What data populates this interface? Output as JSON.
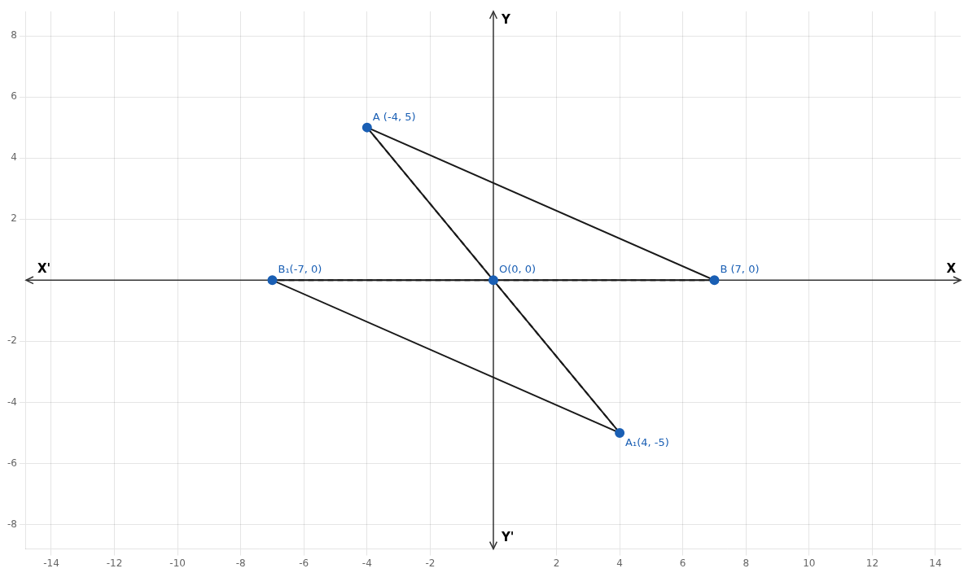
{
  "chart_data": {
    "type": "scatter",
    "xlim": [
      -14.8,
      14.8
    ],
    "ylim": [
      -8.8,
      8.8
    ],
    "xticks": [
      -14,
      -12,
      -10,
      -8,
      -6,
      -4,
      -2,
      2,
      4,
      6,
      8,
      10,
      12,
      14
    ],
    "yticks": [
      -8,
      -6,
      -4,
      -2,
      2,
      4,
      6,
      8
    ],
    "grid": true,
    "axis_labels": {
      "x": [
        "X'",
        "X"
      ],
      "y": [
        "Y'",
        "Y"
      ]
    },
    "series": [
      {
        "x": [
          0,
          -4,
          7,
          0
        ],
        "values": [
          0,
          5,
          0,
          0
        ],
        "color": "#1a1a1a",
        "line_style": "solid",
        "marker": "none"
      },
      {
        "x": [
          0,
          4,
          -7,
          0
        ],
        "values": [
          0,
          -5,
          0,
          0
        ],
        "color": "#1a1a1a",
        "line_style": "solid",
        "marker": "none"
      },
      {
        "x": [
          -4,
          4
        ],
        "values": [
          5,
          -5
        ],
        "color": "#1a1a1a",
        "line_style": "dashed",
        "marker": "none"
      },
      {
        "x": [
          7,
          -7
        ],
        "values": [
          0,
          0
        ],
        "color": "#1a1a1a",
        "line_style": "dashed",
        "marker": "none"
      },
      {
        "x": [
          -4,
          7,
          4,
          -7,
          0
        ],
        "values": [
          5,
          0,
          -5,
          0,
          0
        ],
        "color": "#1a5fb4",
        "line_style": "none",
        "marker": "circle",
        "data_labels": true,
        "value_labels": [
          "A (-4, 5)",
          "B (7, 0)",
          "A₁(4, -5)",
          "B₁(-7, 0)",
          "O(0, 0)"
        ]
      }
    ]
  }
}
